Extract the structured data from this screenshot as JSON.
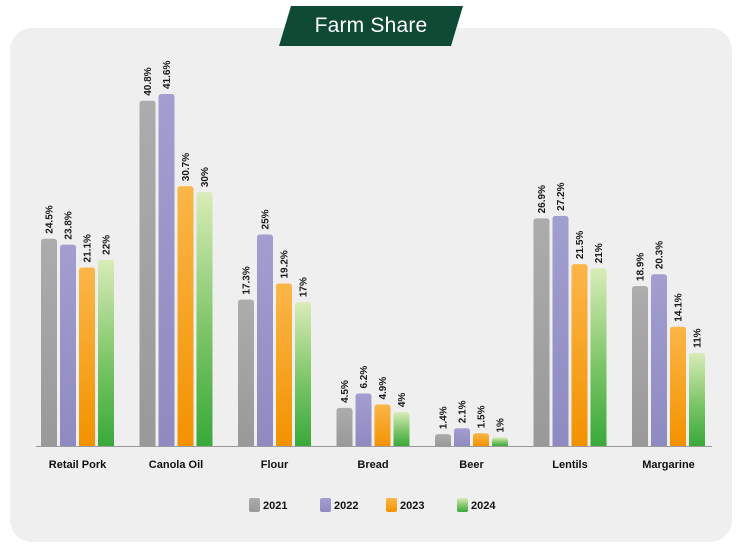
{
  "title": "Farm Share",
  "chart_data": {
    "type": "bar",
    "title": "Farm Share",
    "xlabel": "",
    "ylabel": "",
    "ylim": [
      0,
      45
    ],
    "grid": false,
    "legend_position": "bottom",
    "categories": [
      "Retail Pork",
      "Canola Oil",
      "Flour",
      "Bread",
      "Beer",
      "Lentils",
      "Margarine"
    ],
    "series": [
      {
        "name": "2021",
        "color": "#a5a5a5",
        "values": [
          24.5,
          40.8,
          17.3,
          4.5,
          1.4,
          26.9,
          18.9
        ],
        "labels": [
          "24.5%",
          "40.8%",
          "17.3%",
          "4.5%",
          "1.4%",
          "26.9%",
          "18.9%"
        ]
      },
      {
        "name": "2022",
        "color": "#9b96c8",
        "values": [
          23.8,
          41.6,
          25,
          6.2,
          2.1,
          27.2,
          20.3
        ],
        "labels": [
          "23.8%",
          "41.6%",
          "25%",
          "6.2%",
          "2.1%",
          "27.2%",
          "20.3%"
        ]
      },
      {
        "name": "2023",
        "color": "#f7a21b",
        "values": [
          21.1,
          30.7,
          19.2,
          4.9,
          1.5,
          21.5,
          14.1
        ],
        "labels": [
          "21.1%",
          "30.7%",
          "19.2%",
          "4.9%",
          "1.5%",
          "21.5%",
          "14.1%"
        ]
      },
      {
        "name": "2024",
        "color": "#4cb848",
        "values": [
          22,
          30,
          17,
          4,
          1,
          21,
          11
        ],
        "labels": [
          "22%",
          "30%",
          "17%",
          "4%",
          "1%",
          "21%",
          "11%"
        ]
      }
    ]
  }
}
